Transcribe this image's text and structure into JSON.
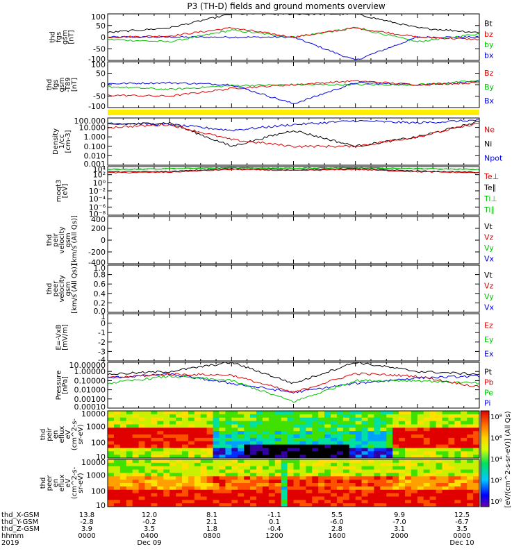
{
  "title": "P3 (TH-D) fields and ground moments overview",
  "panels": [
    {
      "id": "fgs-gsm",
      "ylabel": [
        "thd",
        "fgs",
        "gsm",
        "[nT]"
      ],
      "yticks": [
        "100",
        "50",
        "0",
        "-50",
        "-100"
      ],
      "legend": [
        {
          "text": "Bt",
          "color": "#000000"
        },
        {
          "text": "bz",
          "color": "#e00000"
        },
        {
          "text": "by",
          "color": "#00c000"
        },
        {
          "text": "bx",
          "color": "#0000e0"
        }
      ]
    },
    {
      "id": "fgs-gsm-t89",
      "ylabel": [
        "thd",
        "fgs",
        "gsm",
        "-T89",
        "[nT]"
      ],
      "yticks": [
        "100",
        "50",
        "0",
        "-50",
        "-100"
      ],
      "legend": [
        {
          "text": "Bz",
          "color": "#e00000"
        },
        {
          "text": "By",
          "color": "#00c000"
        },
        {
          "text": "Bx",
          "color": "#0000e0"
        }
      ]
    },
    {
      "id": "density",
      "ylabel": [
        "Density",
        "1/cc",
        "[cm-3]"
      ],
      "yticks": [
        "100.000",
        "10.000",
        "1.000",
        "0.100",
        "0.010",
        "0.001"
      ],
      "legend": [
        {
          "text": "Ne",
          "color": "#e00000"
        },
        {
          "text": "Ni",
          "color": "#000000"
        },
        {
          "text": "Npot",
          "color": "#0000e0"
        }
      ]
    },
    {
      "id": "temperature",
      "ylabel": [
        "moqt3",
        "[eV]"
      ],
      "yticks": [
        "10⁴",
        "10²",
        "10⁰",
        "10⁻²",
        "10⁻⁴",
        "10⁻⁶",
        "10⁻⁸"
      ],
      "legend": [
        {
          "text": "Te⊥",
          "color": "#e00000"
        },
        {
          "text": "Te∥",
          "color": "#000000"
        },
        {
          "text": "Ti⊥",
          "color": "#00c000"
        },
        {
          "text": "Ti∥",
          "color": "#00c000"
        }
      ]
    },
    {
      "id": "peir-velocity",
      "ylabel": [
        "thd",
        "peir",
        "velocity",
        "gsm",
        "[km/s (All Qs)]"
      ],
      "yticks": [
        "400",
        "200",
        "0",
        "-200",
        "-400"
      ],
      "legend": [
        {
          "text": "Vt",
          "color": "#000000"
        },
        {
          "text": "Vz",
          "color": "#e00000"
        },
        {
          "text": "Vy",
          "color": "#00c000"
        },
        {
          "text": "Vx",
          "color": "#0000e0"
        }
      ]
    },
    {
      "id": "peer-velocity",
      "ylabel": [
        "thd",
        "peer",
        "velocity",
        "gsm",
        "[km/s (All Qs)]"
      ],
      "yticks": [
        "1.0",
        "0.8",
        "0.6",
        "0.4",
        "0.2",
        "0.0"
      ],
      "legend": [
        {
          "text": "Vt",
          "color": "#000000"
        },
        {
          "text": "Vz",
          "color": "#e00000"
        },
        {
          "text": "Vy",
          "color": "#00c000"
        },
        {
          "text": "Vx",
          "color": "#0000e0"
        }
      ]
    },
    {
      "id": "e-field",
      "ylabel": [
        "E=-VxB",
        "[mV/m]"
      ],
      "yticks": [
        "1",
        "0",
        "-1",
        "-2",
        "-3",
        "-4"
      ],
      "legend": [
        {
          "text": "Ez",
          "color": "#e00000"
        },
        {
          "text": "Ey",
          "color": "#00c000"
        },
        {
          "text": "Ex",
          "color": "#0000e0"
        }
      ]
    },
    {
      "id": "pressure",
      "ylabel": [
        "Pressure",
        "[nPa]"
      ],
      "yticks": [
        "10.00000",
        "1.00000",
        "0.10000",
        "0.01000",
        "0.00100",
        "0.00010"
      ],
      "legend": [
        {
          "text": "Pt",
          "color": "#000000"
        },
        {
          "text": "Pb",
          "color": "#e00000"
        },
        {
          "text": "Pe",
          "color": "#00c000"
        },
        {
          "text": "Pi",
          "color": "#0000e0"
        }
      ]
    },
    {
      "id": "peir-en-eflux",
      "ylabel": [
        "thd",
        "peir",
        "en",
        "eflux",
        "eV",
        "(cm^2-s-",
        "sr-eV)"
      ],
      "yticks": [
        "10000",
        "1000",
        "100",
        "10"
      ]
    },
    {
      "id": "peer-en-eflux",
      "ylabel": [
        "thd",
        "peer",
        "en",
        "eflux",
        "eV",
        "(cm^2-s-",
        "sr-eV)"
      ],
      "yticks": [
        "10000",
        "1000",
        "100",
        "10"
      ]
    }
  ],
  "colorbar": {
    "label": "[eV/(cm^2-s-sr-eV)] (All Qs)",
    "ticks": [
      "10⁸",
      "10⁶",
      "10⁴",
      "10²",
      "10⁰"
    ]
  },
  "position_table": {
    "rows": [
      {
        "label": "thd_X-GSM",
        "values": [
          "13.8",
          "12.0",
          "8.1",
          "-1.1",
          "5.5",
          "9.9",
          "12.5"
        ]
      },
      {
        "label": "thd_Y-GSM",
        "values": [
          "-2.8",
          "-0.2",
          "2.1",
          "0.1",
          "-6.0",
          "-7.0",
          "-6.7"
        ]
      },
      {
        "label": "thd_Z-GSM",
        "values": [
          "3.9",
          "3.5",
          "1.8",
          "-0.4",
          "2.8",
          "3.1",
          "3.5"
        ]
      },
      {
        "label": "hhmm",
        "values": [
          "0000",
          "0400",
          "0800",
          "1200",
          "1600",
          "2000",
          "0000"
        ]
      },
      {
        "label": "2019",
        "values": [
          "",
          "Dec 09",
          "",
          "",
          "",
          "",
          "Dec 10"
        ]
      }
    ]
  },
  "chart_data": {
    "type": "line",
    "x": [
      "0000",
      "0400",
      "0800",
      "1200",
      "1600",
      "2000",
      "0000"
    ],
    "xlabel": "hhmm",
    "panels": [
      {
        "name": "thd fgs gsm",
        "unit": "nT",
        "ylim": [
          -100,
          100
        ],
        "series": [
          {
            "name": "Bt",
            "values": [
              20,
              40,
              100,
              100,
              100,
              40,
              20
            ]
          },
          {
            "name": "bz",
            "values": [
              0,
              5,
              40,
              0,
              40,
              0,
              -10
            ]
          },
          {
            "name": "by",
            "values": [
              -10,
              -20,
              30,
              0,
              40,
              -20,
              15
            ]
          },
          {
            "name": "bx",
            "values": [
              0,
              0,
              0,
              0,
              -100,
              0,
              0
            ]
          }
        ]
      },
      {
        "name": "thd fgs gsm -T89",
        "unit": "nT",
        "ylim": [
          -120,
          120
        ],
        "series": [
          {
            "name": "Bz",
            "values": [
              -55,
              -60,
              -20,
              0,
              20,
              0,
              10
            ]
          },
          {
            "name": "By",
            "values": [
              -10,
              -25,
              -5,
              0,
              0,
              0,
              20
            ]
          },
          {
            "name": "Bx",
            "values": [
              5,
              10,
              0,
              -100,
              10,
              0,
              15
            ]
          }
        ]
      },
      {
        "name": "Density",
        "unit": "1/cc",
        "scale": "log",
        "ylim": [
          0.001,
          100
        ],
        "series": [
          {
            "name": "Ne",
            "values": [
              10,
              20,
              0.5,
              0.1,
              0.1,
              1,
              30
            ]
          },
          {
            "name": "Ni",
            "values": [
              20,
              30,
              0.1,
              5,
              0.1,
              1,
              40
            ]
          },
          {
            "name": "Npot",
            "values": [
              30,
              20,
              5,
              20,
              50,
              30,
              60
            ]
          }
        ]
      },
      {
        "name": "moqt3",
        "unit": "eV",
        "scale": "log",
        "ylim": [
          1e-08,
          10000
        ],
        "series": [
          {
            "name": "Te⊥",
            "values": [
              300,
              400,
              2000,
              1000,
              2000,
              500,
              300
            ]
          },
          {
            "name": "Te∥",
            "values": [
              500,
              600,
              3000,
              1500,
              3000,
              800,
              400
            ]
          },
          {
            "name": "Ti⊥",
            "values": [
              2000,
              3000,
              5000,
              4000,
              5000,
              3000,
              2000
            ]
          },
          {
            "name": "Ti∥",
            "values": [
              2000,
              3000,
              5000,
              4000,
              5000,
              3000,
              2000
            ]
          }
        ]
      },
      {
        "name": "thd peir velocity gsm",
        "unit": "km/s (All Qs)",
        "ylim": [
          -400,
          400
        ],
        "series": []
      },
      {
        "name": "thd peer velocity gsm",
        "unit": "km/s (All Qs)",
        "ylim": [
          0,
          1
        ],
        "series": []
      },
      {
        "name": "E=-VxB",
        "unit": "mV/m",
        "ylim": [
          -4,
          1
        ],
        "series": []
      },
      {
        "name": "Pressure",
        "unit": "nPa",
        "scale": "log",
        "ylim": [
          0.0001,
          10
        ],
        "series": [
          {
            "name": "Pt",
            "values": [
              0.5,
              1,
              10,
              0.05,
              10,
              1,
              0.5
            ]
          },
          {
            "name": "Pb",
            "values": [
              0.2,
              0.5,
              0.4,
              0.005,
              0.6,
              0.3,
              0.02
            ]
          },
          {
            "name": "Pe",
            "values": [
              0.05,
              0.3,
              0.1,
              0.0005,
              0.1,
              0.1,
              0.05
            ]
          },
          {
            "name": "Pi",
            "values": [
              0.2,
              0.5,
              0.05,
              0.005,
              0.05,
              0.2,
              0.3
            ]
          }
        ]
      },
      {
        "name": "thd peir en eflux",
        "type": "heatmap",
        "unit": "eV/(cm^2-s-sr-eV)",
        "ylim": [
          5,
          20000
        ]
      },
      {
        "name": "thd peer en eflux",
        "type": "heatmap",
        "unit": "eV/(cm^2-s-sr-eV)",
        "ylim": [
          5,
          20000
        ]
      }
    ]
  }
}
